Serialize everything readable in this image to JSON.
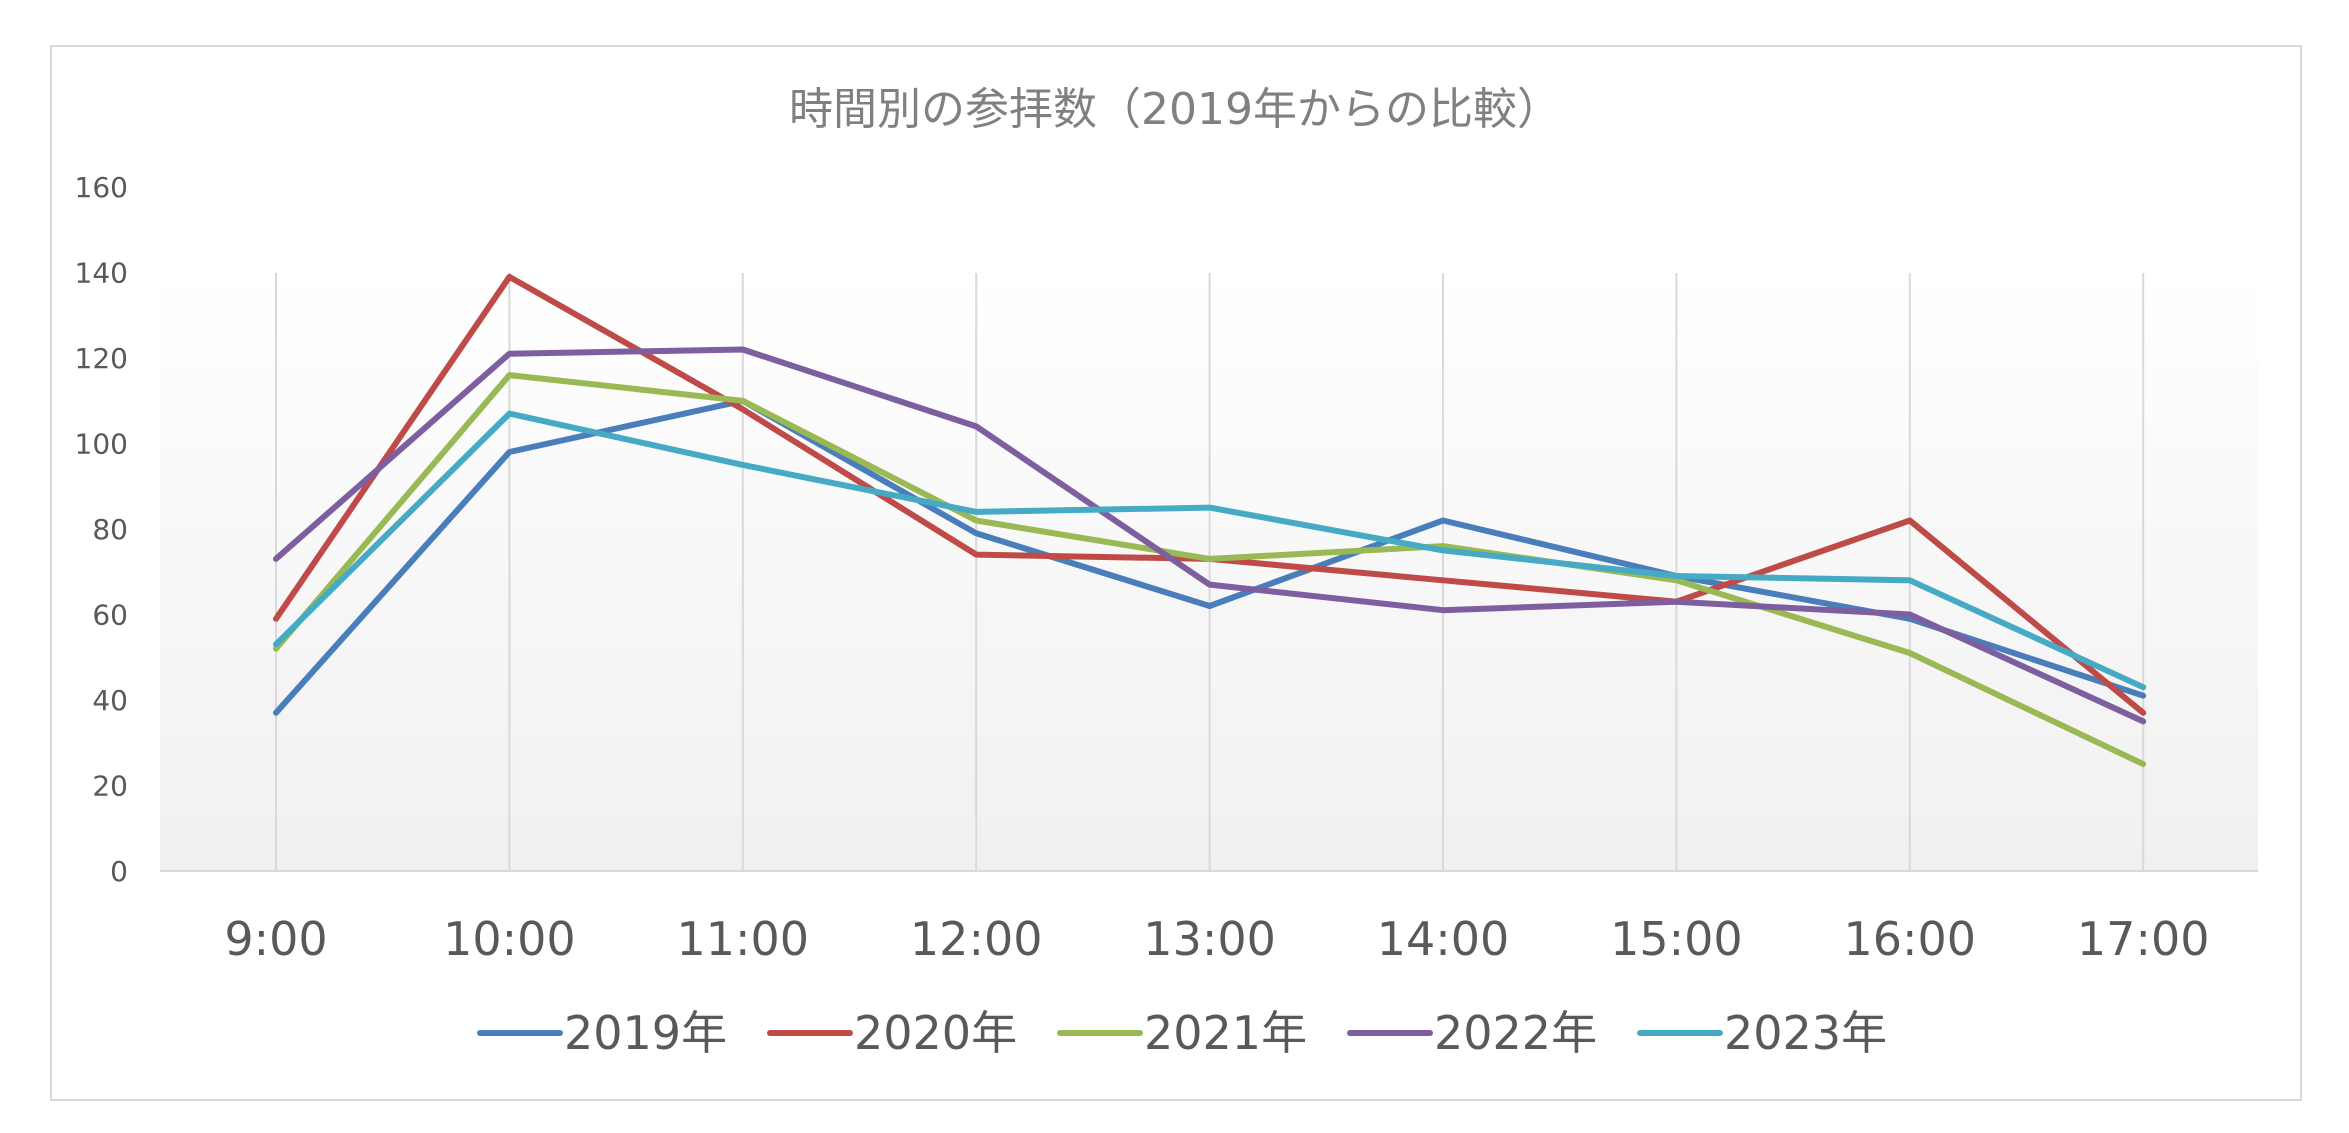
{
  "chart_data": {
    "type": "line",
    "title": "時間別の参拝数（2019年からの比較）",
    "xlabel": "",
    "ylabel": "",
    "categories": [
      "9:00",
      "10:00",
      "11:00",
      "12:00",
      "13:00",
      "14:00",
      "15:00",
      "16:00",
      "17:00"
    ],
    "ylim": [
      0,
      160
    ],
    "yticks": [
      0,
      20,
      40,
      60,
      80,
      100,
      120,
      140,
      160
    ],
    "grid": "vertical",
    "legend": "bottom",
    "series": [
      {
        "name": "2019年",
        "color": "#4a7ebb",
        "values": [
          37,
          98,
          110,
          79,
          62,
          82,
          69,
          59,
          41
        ]
      },
      {
        "name": "2020年",
        "color": "#be4b48",
        "values": [
          59,
          139,
          108,
          74,
          73,
          68,
          63,
          82,
          37
        ]
      },
      {
        "name": "2021年",
        "color": "#98b954",
        "values": [
          52,
          116,
          110,
          82,
          73,
          76,
          68,
          51,
          25
        ]
      },
      {
        "name": "2022年",
        "color": "#7d5fa0",
        "values": [
          73,
          121,
          122,
          104,
          67,
          61,
          63,
          60,
          35
        ]
      },
      {
        "name": "2023年",
        "color": "#46aac5",
        "values": [
          53,
          107,
          95,
          84,
          85,
          75,
          69,
          68,
          43
        ]
      }
    ]
  }
}
